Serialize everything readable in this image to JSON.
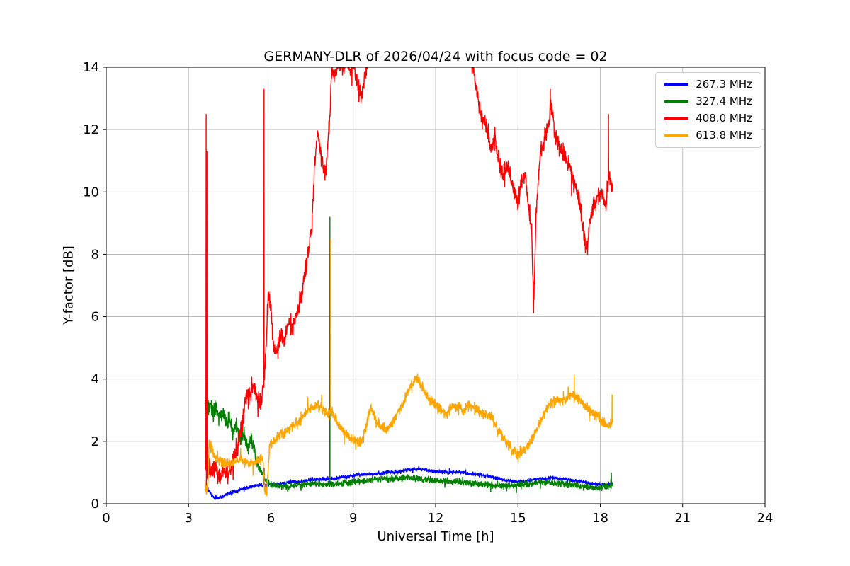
{
  "chart_data": {
    "type": "line",
    "title": "GERMANY-DLR of 2026/04/24 with focus code = 02",
    "xlabel": "Universal Time [h]",
    "ylabel": "Y-factor [dB]",
    "xlim": [
      0,
      24
    ],
    "ylim": [
      0,
      14
    ],
    "xticks": [
      0,
      3,
      6,
      9,
      12,
      15,
      18,
      21,
      24
    ],
    "yticks": [
      0,
      2,
      4,
      6,
      8,
      10,
      12,
      14
    ],
    "grid": true,
    "grid_color": "#b0b0b0",
    "frame_color": "#000000",
    "legend_position": "upper right",
    "noise_seed": 11,
    "sample_step": 0.008,
    "series": [
      {
        "name": "267.3 MHz",
        "color": "#0000ff",
        "noise": 0.07,
        "keypoints": [
          [
            3.6,
            0.55
          ],
          [
            3.75,
            0.4
          ],
          [
            3.9,
            0.2
          ],
          [
            4.1,
            0.18
          ],
          [
            4.3,
            0.25
          ],
          [
            4.5,
            0.35
          ],
          [
            4.7,
            0.4
          ],
          [
            5.0,
            0.5
          ],
          [
            5.3,
            0.55
          ],
          [
            5.6,
            0.6
          ],
          [
            5.85,
            0.62
          ],
          [
            6.1,
            0.6
          ],
          [
            6.4,
            0.65
          ],
          [
            6.7,
            0.7
          ],
          [
            7.0,
            0.7
          ],
          [
            7.4,
            0.75
          ],
          [
            7.8,
            0.78
          ],
          [
            8.2,
            0.8
          ],
          [
            8.6,
            0.85
          ],
          [
            9.0,
            0.9
          ],
          [
            9.4,
            0.95
          ],
          [
            9.8,
            0.95
          ],
          [
            10.2,
            1.0
          ],
          [
            10.6,
            1.02
          ],
          [
            11.0,
            1.1
          ],
          [
            11.4,
            1.12
          ],
          [
            11.8,
            1.05
          ],
          [
            12.2,
            1.02
          ],
          [
            12.6,
            1.0
          ],
          [
            13.0,
            1.0
          ],
          [
            13.4,
            0.95
          ],
          [
            13.8,
            0.9
          ],
          [
            14.2,
            0.82
          ],
          [
            14.6,
            0.75
          ],
          [
            15.0,
            0.7
          ],
          [
            15.4,
            0.75
          ],
          [
            15.8,
            0.8
          ],
          [
            16.2,
            0.82
          ],
          [
            16.6,
            0.8
          ],
          [
            17.0,
            0.75
          ],
          [
            17.4,
            0.7
          ],
          [
            17.8,
            0.63
          ],
          [
            18.1,
            0.6
          ],
          [
            18.45,
            0.65
          ]
        ],
        "spikes": [
          [
            5.75,
            1.15
          ]
        ]
      },
      {
        "name": "327.4 MHz",
        "color": "#008000",
        "noise": 0.13,
        "noise_zones": [
          {
            "from": 3.6,
            "to": 5.6,
            "amp": 0.3
          }
        ],
        "keypoints": [
          [
            3.6,
            3.3
          ],
          [
            3.7,
            3.0
          ],
          [
            3.8,
            3.25
          ],
          [
            3.9,
            2.9
          ],
          [
            4.0,
            3.1
          ],
          [
            4.1,
            2.7
          ],
          [
            4.25,
            2.95
          ],
          [
            4.4,
            2.55
          ],
          [
            4.5,
            2.85
          ],
          [
            4.6,
            2.25
          ],
          [
            4.75,
            2.6
          ],
          [
            4.9,
            1.95
          ],
          [
            5.0,
            2.25
          ],
          [
            5.15,
            1.75
          ],
          [
            5.3,
            2.05
          ],
          [
            5.45,
            1.45
          ],
          [
            5.6,
            1.1
          ],
          [
            5.8,
            0.75
          ],
          [
            6.0,
            0.62
          ],
          [
            6.5,
            0.55
          ],
          [
            7.0,
            0.6
          ],
          [
            7.5,
            0.65
          ],
          [
            8.0,
            0.6
          ],
          [
            8.5,
            0.65
          ],
          [
            9.0,
            0.7
          ],
          [
            9.5,
            0.75
          ],
          [
            10.0,
            0.8
          ],
          [
            10.5,
            0.8
          ],
          [
            11.0,
            0.85
          ],
          [
            11.5,
            0.8
          ],
          [
            12.0,
            0.75
          ],
          [
            12.5,
            0.72
          ],
          [
            13.0,
            0.7
          ],
          [
            13.5,
            0.65
          ],
          [
            14.0,
            0.6
          ],
          [
            14.5,
            0.55
          ],
          [
            15.0,
            0.6
          ],
          [
            15.5,
            0.65
          ],
          [
            16.0,
            0.7
          ],
          [
            16.5,
            0.65
          ],
          [
            17.0,
            0.6
          ],
          [
            17.5,
            0.55
          ],
          [
            18.0,
            0.5
          ],
          [
            18.45,
            0.62
          ]
        ],
        "spikes": [
          [
            8.15,
            9.2
          ],
          [
            18.4,
            1.0
          ]
        ]
      },
      {
        "name": "408.0 MHz",
        "color": "#ff0000",
        "noise": 0.35,
        "keypoints": [
          [
            3.6,
            1.2
          ],
          [
            3.7,
            1.4
          ],
          [
            3.8,
            1.0
          ],
          [
            3.95,
            1.2
          ],
          [
            4.1,
            0.8
          ],
          [
            4.25,
            1.0
          ],
          [
            4.4,
            0.9
          ],
          [
            4.6,
            1.3
          ],
          [
            4.8,
            1.8
          ],
          [
            5.0,
            2.8
          ],
          [
            5.1,
            3.6
          ],
          [
            5.2,
            3.3
          ],
          [
            5.35,
            3.8
          ],
          [
            5.5,
            3.5
          ],
          [
            5.65,
            3.2
          ],
          [
            5.8,
            4.5
          ],
          [
            5.9,
            6.8
          ],
          [
            6.0,
            6.2
          ],
          [
            6.1,
            5.0
          ],
          [
            6.2,
            4.8
          ],
          [
            6.35,
            5.4
          ],
          [
            6.5,
            5.2
          ],
          [
            6.65,
            5.8
          ],
          [
            6.8,
            5.6
          ],
          [
            7.0,
            6.3
          ],
          [
            7.1,
            6.6
          ],
          [
            7.25,
            7.5
          ],
          [
            7.4,
            8.3
          ],
          [
            7.5,
            9.0
          ],
          [
            7.6,
            11.0
          ],
          [
            7.7,
            11.8
          ],
          [
            7.8,
            11.2
          ],
          [
            7.9,
            10.8
          ],
          [
            8.0,
            10.6
          ],
          [
            8.05,
            11.2
          ],
          [
            8.15,
            12.5
          ],
          [
            8.22,
            14.0
          ],
          [
            8.3,
            13.6
          ],
          [
            8.45,
            14.2
          ],
          [
            8.6,
            13.9
          ],
          [
            8.75,
            14.3
          ],
          [
            8.9,
            13.7
          ],
          [
            9.0,
            14.2
          ],
          [
            9.15,
            13.5
          ],
          [
            9.3,
            13.1
          ],
          [
            9.45,
            13.8
          ],
          [
            9.6,
            14.5
          ],
          [
            9.8,
            15.2
          ],
          [
            10.5,
            16.0
          ],
          [
            12.0,
            16.0
          ],
          [
            13.0,
            15.0
          ],
          [
            13.35,
            14.0
          ],
          [
            13.5,
            13.2
          ],
          [
            13.65,
            12.5
          ],
          [
            13.8,
            12.3
          ],
          [
            14.0,
            11.4
          ],
          [
            14.15,
            11.8
          ],
          [
            14.3,
            11.0
          ],
          [
            14.5,
            10.4
          ],
          [
            14.65,
            10.8
          ],
          [
            14.8,
            10.2
          ],
          [
            15.0,
            9.6
          ],
          [
            15.1,
            10.2
          ],
          [
            15.25,
            10.6
          ],
          [
            15.4,
            9.4
          ],
          [
            15.5,
            8.8
          ],
          [
            15.57,
            6.2
          ],
          [
            15.65,
            9.0
          ],
          [
            15.8,
            11.2
          ],
          [
            15.95,
            11.6
          ],
          [
            16.1,
            12.2
          ],
          [
            16.2,
            12.8
          ],
          [
            16.35,
            11.8
          ],
          [
            16.5,
            11.4
          ],
          [
            16.7,
            11.2
          ],
          [
            16.9,
            10.8
          ],
          [
            17.1,
            10.2
          ],
          [
            17.25,
            9.6
          ],
          [
            17.4,
            8.6
          ],
          [
            17.5,
            8.1
          ],
          [
            17.6,
            9.0
          ],
          [
            17.75,
            9.6
          ],
          [
            17.9,
            9.8
          ],
          [
            18.05,
            10.0
          ],
          [
            18.2,
            9.6
          ],
          [
            18.3,
            10.5
          ],
          [
            18.45,
            10.2
          ]
        ],
        "spikes": [
          [
            3.64,
            12.5
          ],
          [
            3.65,
            0.4
          ],
          [
            3.67,
            11.3
          ],
          [
            3.68,
            0.8
          ],
          [
            5.75,
            13.3
          ],
          [
            16.18,
            13.3
          ],
          [
            18.3,
            12.5
          ]
        ]
      },
      {
        "name": "613.8 MHz",
        "color": "#ffa500",
        "noise": 0.22,
        "keypoints": [
          [
            3.6,
            0.4
          ],
          [
            3.7,
            0.5
          ],
          [
            3.75,
            1.9
          ],
          [
            3.85,
            1.7
          ],
          [
            4.0,
            1.5
          ],
          [
            4.15,
            1.35
          ],
          [
            4.3,
            1.25
          ],
          [
            4.5,
            1.3
          ],
          [
            4.7,
            1.35
          ],
          [
            4.9,
            1.4
          ],
          [
            5.1,
            1.35
          ],
          [
            5.3,
            1.3
          ],
          [
            5.5,
            1.35
          ],
          [
            5.7,
            1.4
          ],
          [
            5.78,
            0.4
          ],
          [
            5.85,
            0.45
          ],
          [
            5.95,
            1.9
          ],
          [
            6.1,
            2.0
          ],
          [
            6.3,
            2.2
          ],
          [
            6.5,
            2.3
          ],
          [
            6.7,
            2.45
          ],
          [
            6.9,
            2.55
          ],
          [
            7.1,
            2.7
          ],
          [
            7.3,
            2.95
          ],
          [
            7.5,
            3.1
          ],
          [
            7.7,
            3.15
          ],
          [
            7.9,
            3.05
          ],
          [
            8.05,
            2.9
          ],
          [
            8.2,
            3.0
          ],
          [
            8.35,
            2.75
          ],
          [
            8.5,
            2.5
          ],
          [
            8.7,
            2.3
          ],
          [
            8.9,
            2.1
          ],
          [
            9.1,
            2.0
          ],
          [
            9.3,
            1.95
          ],
          [
            9.5,
            2.6
          ],
          [
            9.65,
            3.1
          ],
          [
            9.8,
            2.7
          ],
          [
            10.0,
            2.45
          ],
          [
            10.2,
            2.4
          ],
          [
            10.4,
            2.5
          ],
          [
            10.6,
            2.9
          ],
          [
            10.8,
            3.2
          ],
          [
            11.0,
            3.6
          ],
          [
            11.2,
            3.9
          ],
          [
            11.35,
            4.0
          ],
          [
            11.5,
            3.8
          ],
          [
            11.65,
            3.5
          ],
          [
            11.8,
            3.3
          ],
          [
            12.0,
            3.2
          ],
          [
            12.2,
            3.0
          ],
          [
            12.4,
            2.9
          ],
          [
            12.6,
            3.1
          ],
          [
            12.8,
            3.15
          ],
          [
            13.0,
            3.0
          ],
          [
            13.2,
            3.15
          ],
          [
            13.4,
            3.1
          ],
          [
            13.6,
            2.9
          ],
          [
            13.8,
            2.85
          ],
          [
            14.0,
            2.8
          ],
          [
            14.2,
            2.5
          ],
          [
            14.4,
            2.2
          ],
          [
            14.6,
            1.95
          ],
          [
            14.8,
            1.75
          ],
          [
            15.0,
            1.6
          ],
          [
            15.2,
            1.7
          ],
          [
            15.4,
            1.9
          ],
          [
            15.6,
            2.2
          ],
          [
            15.8,
            2.6
          ],
          [
            16.0,
            3.0
          ],
          [
            16.2,
            3.25
          ],
          [
            16.4,
            3.3
          ],
          [
            16.6,
            3.3
          ],
          [
            16.8,
            3.4
          ],
          [
            17.0,
            3.5
          ],
          [
            17.15,
            3.4
          ],
          [
            17.3,
            3.3
          ],
          [
            17.5,
            3.1
          ],
          [
            17.7,
            2.95
          ],
          [
            17.9,
            2.8
          ],
          [
            18.1,
            2.6
          ],
          [
            18.3,
            2.5
          ],
          [
            18.45,
            2.6
          ]
        ],
        "spikes": [
          [
            8.17,
            8.5
          ],
          [
            17.05,
            4.15
          ],
          [
            18.43,
            3.5
          ]
        ]
      }
    ]
  }
}
